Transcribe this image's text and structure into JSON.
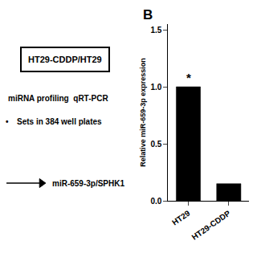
{
  "chart_data": {
    "type": "bar",
    "categories": [
      "HT29",
      "HT29-CDDP"
    ],
    "values": [
      1.0,
      0.15
    ],
    "color": "#000000",
    "ylabel": "Relative miR-659-3p expression",
    "ylim": [
      0.0,
      1.55
    ],
    "yticks": [
      {
        "value": 0.0,
        "label": "0.0"
      },
      0.5,
      {
        "value": 1.0,
        "label": "1.0"
      },
      1.5
    ],
    "grid": false,
    "annotations": [
      {
        "text": "HT29-CDDP/HT29"
      },
      {
        "text": "miRNA profiling  qRT-PCR"
      },
      {
        "text": "•"
      },
      {
        "text": "Sets in 384 well plates"
      },
      {
        "text": "miR-659-3p/SPHK1"
      },
      {
        "text": "B"
      },
      {
        "text": "*",
        "x": "HT29"
      }
    ]
  }
}
